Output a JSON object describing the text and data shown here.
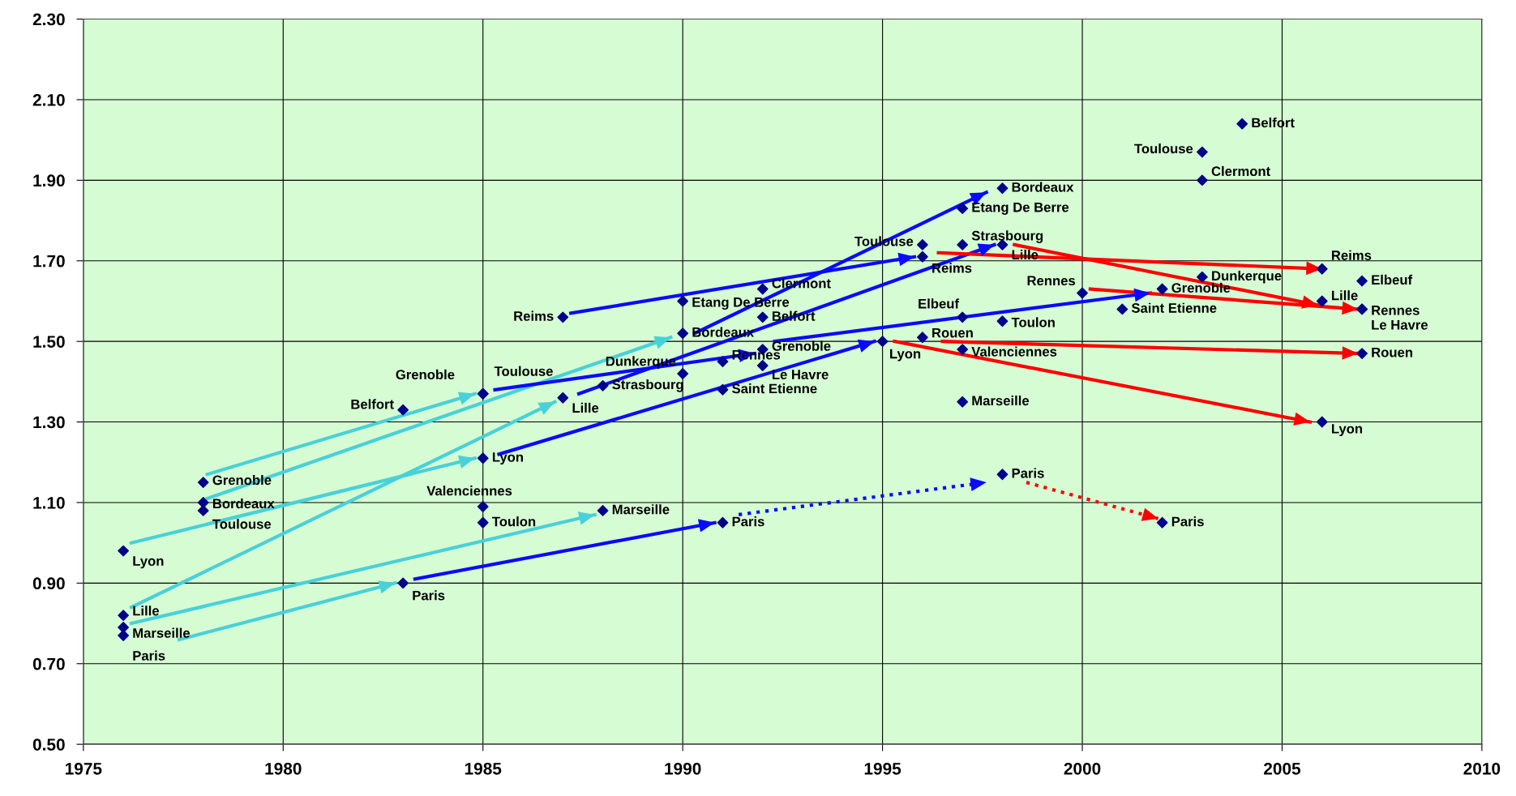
{
  "chart_data": {
    "type": "scatter",
    "xlim": [
      1975,
      2010
    ],
    "xticks": [
      1975,
      1980,
      1985,
      1990,
      1995,
      2000,
      2005,
      2010
    ],
    "ylim": [
      0.5,
      2.3
    ],
    "yticks": [
      {
        "value": 0.5,
        "label": "0.50"
      },
      {
        "value": 0.7,
        "label": "0.70"
      },
      {
        "value": 0.9,
        "label": "0.90"
      },
      {
        "value": 1.1,
        "label": "1.10"
      },
      {
        "value": 1.3,
        "label": "1.30"
      },
      {
        "value": 1.5,
        "label": "1.50"
      },
      {
        "value": 1.7,
        "label": "1.70"
      },
      {
        "value": 1.9,
        "label": "1.90"
      },
      {
        "value": 2.1,
        "label": "2.10"
      },
      {
        "value": 2.3,
        "label": "2.30"
      }
    ],
    "grid": true,
    "series": [
      {
        "marker": "diamond",
        "color": "#00008b",
        "x": [
          1976,
          1976,
          1976,
          1976,
          1978,
          1978,
          1978,
          1983,
          1983,
          1985,
          1985,
          1985,
          1985,
          1985,
          1987,
          1987,
          1988,
          1988,
          1990,
          1990,
          1990,
          1991,
          1991,
          1991,
          1992,
          1992,
          1992,
          1992,
          1995,
          1996,
          1996,
          1996,
          1997,
          1997,
          1997,
          1997,
          1997,
          1998,
          1998,
          1998,
          1998,
          2000,
          2001,
          2002,
          2002,
          2003,
          2003,
          2003,
          2004,
          2006,
          2006,
          2006,
          2007,
          2007,
          2007,
          2007
        ],
        "values": [
          0.98,
          0.82,
          0.79,
          0.77,
          1.15,
          1.1,
          1.08,
          1.33,
          0.9,
          1.37,
          1.37,
          1.21,
          1.09,
          1.05,
          1.56,
          1.36,
          1.39,
          1.08,
          1.6,
          1.52,
          1.42,
          1.38,
          1.45,
          1.05,
          1.63,
          1.56,
          1.48,
          1.44,
          1.5,
          1.74,
          1.71,
          1.51,
          1.83,
          1.74,
          1.56,
          1.48,
          1.35,
          1.88,
          1.74,
          1.55,
          1.17,
          1.62,
          1.58,
          1.63,
          1.05,
          1.97,
          1.9,
          1.66,
          2.04,
          1.68,
          1.6,
          1.3,
          1.65,
          1.58,
          1.58,
          1.47
        ]
      },
      {
        "type": "line",
        "color": "#48d1d8",
        "line_style": "solid",
        "x": [
          1978.1,
          1984.8
        ],
        "values": [
          1.17,
          1.37
        ]
      },
      {
        "type": "line",
        "color": "#48d1d8",
        "line_style": "solid",
        "x": [
          1978.1,
          1989.7
        ],
        "values": [
          1.11,
          1.51
        ]
      },
      {
        "type": "line",
        "color": "#48d1d8",
        "line_style": "solid",
        "x": [
          1976.2,
          1984.8
        ],
        "values": [
          1.0,
          1.21
        ]
      },
      {
        "type": "line",
        "color": "#48d1d8",
        "line_style": "solid",
        "x": [
          1976.2,
          1986.8
        ],
        "values": [
          0.84,
          1.35
        ]
      },
      {
        "type": "line",
        "color": "#48d1d8",
        "line_style": "solid",
        "x": [
          1976.2,
          1987.8
        ],
        "values": [
          0.8,
          1.07
        ]
      },
      {
        "type": "line",
        "color": "#48d1d8",
        "line_style": "solid",
        "x": [
          1977.4,
          1982.8
        ],
        "values": [
          0.76,
          0.9
        ]
      },
      {
        "type": "line",
        "color": "#0a0aff",
        "line_style": "solid",
        "x": [
          1985.3,
          1991.8
        ],
        "values": [
          1.38,
          1.47
        ]
      },
      {
        "type": "line",
        "color": "#0a0aff",
        "line_style": "solid",
        "x": [
          1987.2,
          1995.8
        ],
        "values": [
          1.57,
          1.71
        ]
      },
      {
        "type": "line",
        "color": "#0a0aff",
        "line_style": "solid",
        "x": [
          1987.4,
          1997.8
        ],
        "values": [
          1.37,
          1.74
        ]
      },
      {
        "type": "line",
        "color": "#0a0aff",
        "line_style": "solid",
        "x": [
          1990.3,
          1997.6
        ],
        "values": [
          1.52,
          1.87
        ]
      },
      {
        "type": "line",
        "color": "#0a0aff",
        "line_style": "solid",
        "x": [
          1985.4,
          1994.8
        ],
        "values": [
          1.22,
          1.5
        ]
      },
      {
        "type": "line",
        "color": "#0a0aff",
        "line_style": "solid",
        "x": [
          1983.3,
          1990.8
        ],
        "values": [
          0.91,
          1.05
        ]
      },
      {
        "type": "line",
        "color": "#0a0aff",
        "line_style": "dotted",
        "x": [
          1991.4,
          1997.6
        ],
        "values": [
          1.07,
          1.15
        ]
      },
      {
        "type": "line",
        "color": "#0a0aff",
        "line_style": "solid",
        "x": [
          1992.3,
          2001.7
        ],
        "values": [
          1.5,
          1.62
        ]
      },
      {
        "type": "line",
        "color": "#ff0000",
        "line_style": "solid",
        "x": [
          1996.4,
          2006.0
        ],
        "values": [
          1.72,
          1.68
        ]
      },
      {
        "type": "line",
        "color": "#ff0000",
        "line_style": "solid",
        "x": [
          1998.3,
          2005.9
        ],
        "values": [
          1.74,
          1.59
        ]
      },
      {
        "type": "line",
        "color": "#ff0000",
        "line_style": "solid",
        "x": [
          2000.2,
          2006.9
        ],
        "values": [
          1.63,
          1.58
        ]
      },
      {
        "type": "line",
        "color": "#ff0000",
        "line_style": "solid",
        "x": [
          1996.5,
          2006.9
        ],
        "values": [
          1.5,
          1.47
        ]
      },
      {
        "type": "line",
        "color": "#ff0000",
        "line_style": "solid",
        "x": [
          1995.3,
          2005.7
        ],
        "values": [
          1.5,
          1.3
        ]
      },
      {
        "type": "line",
        "color": "#ff0000",
        "line_style": "dotted",
        "x": [
          1998.6,
          2001.9
        ],
        "values": [
          1.15,
          1.06
        ]
      }
    ],
    "annotations": [
      {
        "text": "Lyon",
        "x": 1976,
        "y": 0.98
      },
      {
        "text": "Lille",
        "x": 1976,
        "y": 0.82
      },
      {
        "text": "Marseille",
        "x": 1976,
        "y": 0.79
      },
      {
        "text": "Paris",
        "x": 1976,
        "y": 0.77
      },
      {
        "text": "Grenoble",
        "x": 1978,
        "y": 1.15
      },
      {
        "text": "Bordeaux",
        "x": 1978,
        "y": 1.1
      },
      {
        "text": "Toulouse",
        "x": 1978,
        "y": 1.08
      },
      {
        "text": "Belfort",
        "x": 1983,
        "y": 1.33
      },
      {
        "text": "Paris",
        "x": 1983,
        "y": 0.9
      },
      {
        "text": "Grenoble",
        "x": 1985,
        "y": 1.37
      },
      {
        "text": "Toulouse",
        "x": 1985,
        "y": 1.37
      },
      {
        "text": "Lyon",
        "x": 1985,
        "y": 1.21
      },
      {
        "text": "Valenciennes",
        "x": 1985,
        "y": 1.09
      },
      {
        "text": "Toulon",
        "x": 1985,
        "y": 1.05
      },
      {
        "text": "Reims",
        "x": 1987,
        "y": 1.56
      },
      {
        "text": "Lille",
        "x": 1987,
        "y": 1.36
      },
      {
        "text": "Strasbourg",
        "x": 1988,
        "y": 1.39
      },
      {
        "text": "Marseille",
        "x": 1988,
        "y": 1.08
      },
      {
        "text": "Etang De Berre",
        "x": 1990,
        "y": 1.6
      },
      {
        "text": "Bordeaux",
        "x": 1990,
        "y": 1.52
      },
      {
        "text": "Dunkerque",
        "x": 1990,
        "y": 1.42
      },
      {
        "text": "Saint Etienne",
        "x": 1991,
        "y": 1.38
      },
      {
        "text": "Rennes",
        "x": 1991,
        "y": 1.45
      },
      {
        "text": "Paris",
        "x": 1991,
        "y": 1.05
      },
      {
        "text": "Clermont",
        "x": 1992,
        "y": 1.63
      },
      {
        "text": "Belfort",
        "x": 1992,
        "y": 1.56
      },
      {
        "text": "Grenoble",
        "x": 1992,
        "y": 1.48
      },
      {
        "text": "Le Havre",
        "x": 1992,
        "y": 1.44
      },
      {
        "text": "Lyon",
        "x": 1995,
        "y": 1.5
      },
      {
        "text": "Toulouse",
        "x": 1996,
        "y": 1.74
      },
      {
        "text": "Reims",
        "x": 1996,
        "y": 1.71
      },
      {
        "text": "Rouen",
        "x": 1996,
        "y": 1.51
      },
      {
        "text": "Etang De Berre",
        "x": 1997,
        "y": 1.83
      },
      {
        "text": "Strasbourg",
        "x": 1997,
        "y": 1.74
      },
      {
        "text": "Elbeuf",
        "x": 1997,
        "y": 1.56
      },
      {
        "text": "Valenciennes",
        "x": 1997,
        "y": 1.48
      },
      {
        "text": "Marseille",
        "x": 1997,
        "y": 1.35
      },
      {
        "text": "Bordeaux",
        "x": 1998,
        "y": 1.88
      },
      {
        "text": "Lille",
        "x": 1998,
        "y": 1.74
      },
      {
        "text": "Toulon",
        "x": 1998,
        "y": 1.55
      },
      {
        "text": "Paris",
        "x": 1998,
        "y": 1.17
      },
      {
        "text": "Rennes",
        "x": 2000,
        "y": 1.62
      },
      {
        "text": "Saint Etienne",
        "x": 2001,
        "y": 1.58
      },
      {
        "text": "Grenoble",
        "x": 2002,
        "y": 1.63
      },
      {
        "text": "Paris",
        "x": 2002,
        "y": 1.05
      },
      {
        "text": "Toulouse",
        "x": 2003,
        "y": 1.97
      },
      {
        "text": "Clermont",
        "x": 2003,
        "y": 1.9
      },
      {
        "text": "Dunkerque",
        "x": 2003,
        "y": 1.66
      },
      {
        "text": "Belfort",
        "x": 2004,
        "y": 2.04
      },
      {
        "text": "Reims",
        "x": 2006,
        "y": 1.68
      },
      {
        "text": "Lille",
        "x": 2006,
        "y": 1.6
      },
      {
        "text": "Lyon",
        "x": 2006,
        "y": 1.3
      },
      {
        "text": "Elbeuf",
        "x": 2007,
        "y": 1.65
      },
      {
        "text": "Rennes",
        "x": 2007,
        "y": 1.58
      },
      {
        "text": "Le Havre",
        "x": 2007,
        "y": 1.58
      },
      {
        "text": "Rouen",
        "x": 2007,
        "y": 1.47
      }
    ]
  }
}
